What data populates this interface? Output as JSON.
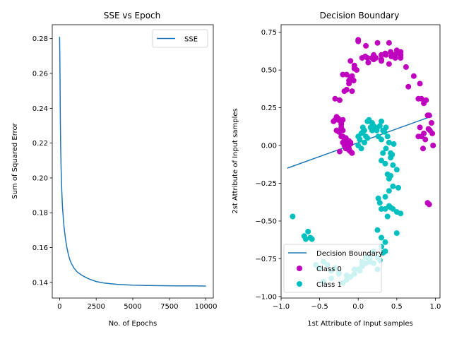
{
  "chart_data": [
    {
      "type": "line",
      "title": "SSE vs Epoch",
      "xlabel": "No. of Epochs",
      "ylabel": "Sum of Squared Error",
      "xlim": [
        -500,
        10500
      ],
      "ylim": [
        0.131,
        0.288
      ],
      "xticks": [
        0,
        2500,
        5000,
        7500,
        10000
      ],
      "yticks": [
        0.14,
        0.16,
        0.18,
        0.2,
        0.22,
        0.24,
        0.26,
        0.28
      ],
      "ytick_labels": [
        "0.14",
        "0.16",
        "0.18",
        "0.20",
        "0.22",
        "0.24",
        "0.26",
        "0.28"
      ],
      "legend_position": "top-right",
      "series": [
        {
          "name": "SSE",
          "color": "#1f77b4",
          "x": [
            0,
            25,
            50,
            75,
            100,
            150,
            200,
            300,
            400,
            500,
            600,
            700,
            800,
            1000,
            1200,
            1500,
            1800,
            2000,
            2500,
            3000,
            3500,
            4000,
            5000,
            6000,
            7000,
            8000,
            9000,
            10000
          ],
          "y": [
            0.281,
            0.262,
            0.235,
            0.218,
            0.207,
            0.192,
            0.183,
            0.172,
            0.165,
            0.16,
            0.156,
            0.153,
            0.151,
            0.148,
            0.146,
            0.1442,
            0.1428,
            0.142,
            0.1405,
            0.1397,
            0.1392,
            0.1388,
            0.1384,
            0.1382,
            0.1381,
            0.138,
            0.138,
            0.1379
          ]
        }
      ]
    },
    {
      "type": "scatter",
      "title": "Decision Boundary",
      "xlabel": "1st Attribute of Input samples",
      "ylabel": "2st Attribute of Input samples",
      "xlim": [
        -1.0,
        1.06
      ],
      "ylim": [
        -1.01,
        0.8
      ],
      "xticks": [
        -1.0,
        -0.5,
        0.0,
        0.5,
        1.0
      ],
      "xtick_labels": [
        "−1.0",
        "−0.5",
        "0.0",
        "0.5",
        "1.0"
      ],
      "yticks": [
        -1.0,
        -0.75,
        -0.5,
        -0.25,
        0.0,
        0.25,
        0.5,
        0.75
      ],
      "ytick_labels": [
        "−1.00",
        "−0.75",
        "−0.50",
        "−0.25",
        "0.00",
        "0.25",
        "0.50",
        "0.75"
      ],
      "legend_position": "bottom-left",
      "boundary": {
        "name": "Decision Boundary",
        "color": "#1f77b4",
        "x": [
          -0.92,
          0.96
        ],
        "y": [
          -0.15,
          0.195
        ]
      },
      "series": [
        {
          "name": "Class 0",
          "color": "#bf00bf",
          "x": [
            0.0,
            0.09,
            0.13,
            0.2,
            0.25,
            0.3,
            0.35,
            0.4,
            0.45,
            0.5,
            0.55,
            0.0,
            0.1,
            0.2,
            0.3,
            0.4,
            0.5,
            0.55,
            -0.1,
            -0.05,
            -0.15,
            -0.2,
            -0.12,
            -0.08,
            -0.05,
            -0.02,
            0.05,
            0.12,
            0.18,
            0.23,
            0.3,
            0.36,
            0.42,
            0.48,
            0.43,
            0.55,
            0.62,
            0.65,
            0.72,
            0.78,
            0.8,
            0.82,
            0.85,
            0.88,
            0.9,
            0.92,
            0.95,
            0.96,
            0.97,
            0.9,
            0.92,
            0.91,
            0.93,
            0.84,
            -0.3,
            -0.32,
            -0.28,
            -0.25,
            -0.22,
            -0.2,
            -0.18,
            -0.15,
            -0.12,
            -0.1,
            -0.08,
            -0.06,
            -0.3,
            -0.28,
            -0.26,
            -0.24,
            -0.22,
            -0.2,
            -0.18,
            -0.16,
            -0.14,
            -0.12,
            -0.1,
            -0.24,
            -0.2,
            -0.16,
            -0.12,
            -0.1,
            -0.08,
            -0.24,
            -0.28,
            -0.22,
            -0.26,
            -0.18,
            -0.15,
            -0.2,
            -0.22,
            -0.16,
            -0.12,
            -0.1,
            0.85,
            0.87,
            0.8,
            0.78,
            0.82
          ],
          "y": [
            0.7,
            0.59,
            0.55,
            0.6,
            0.68,
            0.6,
            0.61,
            0.68,
            0.6,
            0.61,
            0.58,
            0.69,
            0.66,
            0.57,
            0.57,
            0.54,
            0.63,
            0.62,
            0.56,
            0.51,
            0.47,
            0.47,
            0.43,
            0.46,
            0.53,
            0.5,
            0.58,
            0.58,
            0.58,
            0.58,
            0.56,
            0.6,
            0.62,
            0.58,
            0.59,
            0.6,
            0.52,
            0.39,
            0.46,
            0.31,
            0.41,
            0.31,
            0.28,
            0.3,
            0.2,
            0.2,
            0.15,
            0.08,
            0.0,
            -0.38,
            -0.39,
            0.11,
            0.1,
            -0.02,
            0.31,
            0.16,
            0.1,
            0.09,
            0.15,
            0.17,
            0.36,
            0.37,
            0.41,
            0.45,
            0.36,
            0.43,
            0.17,
            0.19,
            0.18,
            0.09,
            0.06,
            0.02,
            0.0,
            -0.02,
            0.03,
            -0.02,
            0.02,
            0.3,
            0.06,
            0.05,
            0.03,
            -0.04,
            -0.05,
            -0.04,
            0.1,
            0.14,
            0.17,
            0.04,
            0.02,
            0.1,
            0.12,
            0.01,
            -0.03,
            0.01,
            0.08,
            0.04,
            0.12,
            0.06,
            0.06
          ]
        },
        {
          "name": "Class 1",
          "color": "#00bfbf",
          "x": [
            0.0,
            0.02,
            0.04,
            0.06,
            0.08,
            0.1,
            0.12,
            0.14,
            0.16,
            0.18,
            0.2,
            0.22,
            0.24,
            0.26,
            0.28,
            0.3,
            0.32,
            0.34,
            0.36,
            0.38,
            0.4,
            0.42,
            0.44,
            0.46,
            0.3,
            0.35,
            0.4,
            0.42,
            0.45,
            0.5,
            0.55,
            0.52,
            0.5,
            0.45,
            0.42,
            0.4,
            0.38,
            0.35,
            0.32,
            0.3,
            0.28,
            0.26,
            0.35,
            0.4,
            0.45,
            0.5,
            0.38,
            0.35,
            0.3,
            0.25,
            0.2,
            0.15,
            0.1,
            0.05,
            0.0,
            0.3,
            0.28,
            0.32,
            0.25,
            0.2,
            0.15,
            0.1,
            0.05,
            0.02,
            -0.05,
            -0.1,
            -0.15,
            -0.2,
            -0.25,
            -0.3,
            -0.35,
            -0.4,
            -0.45,
            -0.5,
            -0.55,
            -0.6,
            -0.65,
            -0.7,
            -0.68,
            -0.62,
            -0.85,
            -0.45,
            -0.35,
            -0.25,
            -0.15,
            -0.05,
            0.05,
            0.15,
            0.25,
            0.35,
            0.12,
            0.08,
            0.04,
            0.02,
            0.0,
            0.06,
            0.18,
            0.24,
            0.3,
            0.36,
            0.42
          ],
          "y": [
            0.0,
            0.04,
            0.08,
            0.12,
            0.1,
            0.06,
            0.16,
            0.17,
            0.12,
            0.1,
            0.13,
            0.12,
            0.11,
            0.06,
            0.13,
            0.16,
            0.1,
            0.09,
            0.12,
            0.06,
            0.02,
            -0.05,
            -0.06,
            0.01,
            -0.42,
            -0.42,
            -0.4,
            -0.41,
            -0.42,
            -0.44,
            -0.45,
            -0.28,
            -0.16,
            -0.13,
            -0.2,
            -0.22,
            -0.19,
            -0.12,
            -0.05,
            -0.1,
            -0.38,
            -0.35,
            -0.34,
            -0.3,
            -0.27,
            -0.58,
            -0.47,
            -0.64,
            -0.61,
            -0.56,
            -0.7,
            -0.75,
            -0.74,
            -0.79,
            -0.82,
            -0.67,
            -0.76,
            -0.71,
            -0.82,
            -0.78,
            -0.74,
            -0.78,
            -0.77,
            -0.83,
            -0.85,
            -0.87,
            -0.89,
            -0.91,
            -0.85,
            -0.81,
            -0.83,
            -0.79,
            -0.77,
            -0.81,
            -0.79,
            -0.62,
            -0.57,
            -0.6,
            -0.62,
            -0.61,
            -0.47,
            -0.9,
            -0.88,
            -0.84,
            -0.86,
            -0.82,
            -0.8,
            -0.77,
            -0.74,
            -0.7,
            0.05,
            0.02,
            -0.02,
            0.04,
            0.06,
            0.09,
            0.15,
            0.1,
            0.04,
            -0.02,
            -0.08
          ]
        }
      ]
    }
  ]
}
